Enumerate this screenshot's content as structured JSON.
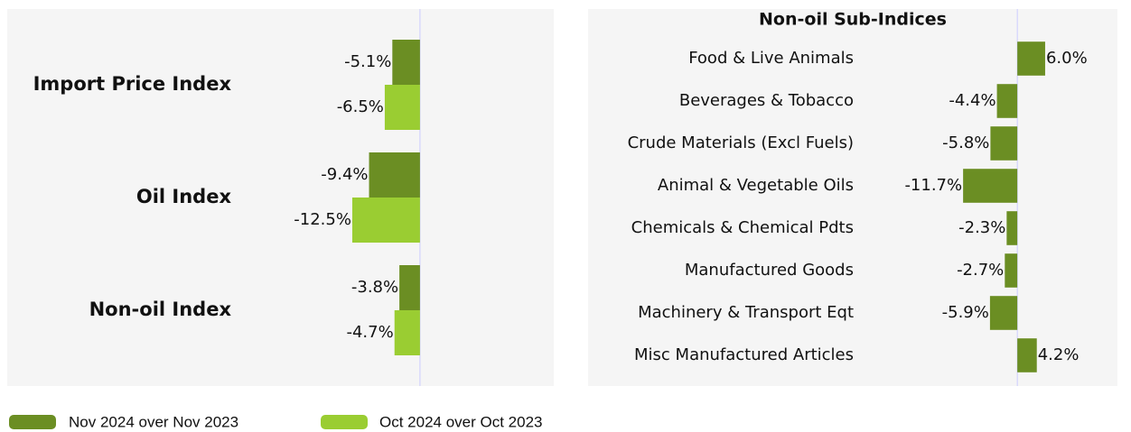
{
  "chart_data": [
    {
      "type": "bar",
      "orientation": "horizontal",
      "categories": [
        "Import Price Index",
        "Oil Index",
        "Non-oil Index"
      ],
      "series": [
        {
          "name": "Nov 2024 over Nov 2023",
          "color": "#6b8e23",
          "values": [
            -5.1,
            -9.4,
            -3.8
          ],
          "value_labels": [
            "-5.1%",
            "-9.4%",
            "-3.8%"
          ]
        },
        {
          "name": "Oct 2024 over Oct 2023",
          "color": "#9acd32",
          "values": [
            -6.5,
            -12.5,
            -4.7
          ],
          "value_labels": [
            "-6.5%",
            "-12.5%",
            "-4.7%"
          ]
        }
      ],
      "xlim": [
        -76.2,
        24.7
      ]
    },
    {
      "type": "bar",
      "orientation": "horizontal",
      "title": "Non-oil Sub-Indices",
      "categories": [
        "Food & Live Animals",
        "Beverages & Tobacco",
        "Crude Materials (Excl Fuels)",
        "Animal & Vegetable Oils",
        "Chemicals & Chemical Pdts",
        "Manufactured Goods",
        "Machinery & Transport Eqt",
        "Misc Manufactured Articles"
      ],
      "series": [
        {
          "color": "#6b8e23",
          "values": [
            6.0,
            -4.4,
            -5.8,
            -11.7,
            -2.3,
            -2.7,
            -5.9,
            4.2
          ],
          "value_labels": [
            "6.0%",
            "-4.4%",
            "-5.8%",
            "-11.7%",
            "-2.3%",
            "-2.7%",
            "-5.9%",
            "4.2%"
          ]
        }
      ],
      "xlim": [
        -92.6,
        21.6
      ]
    }
  ]
}
